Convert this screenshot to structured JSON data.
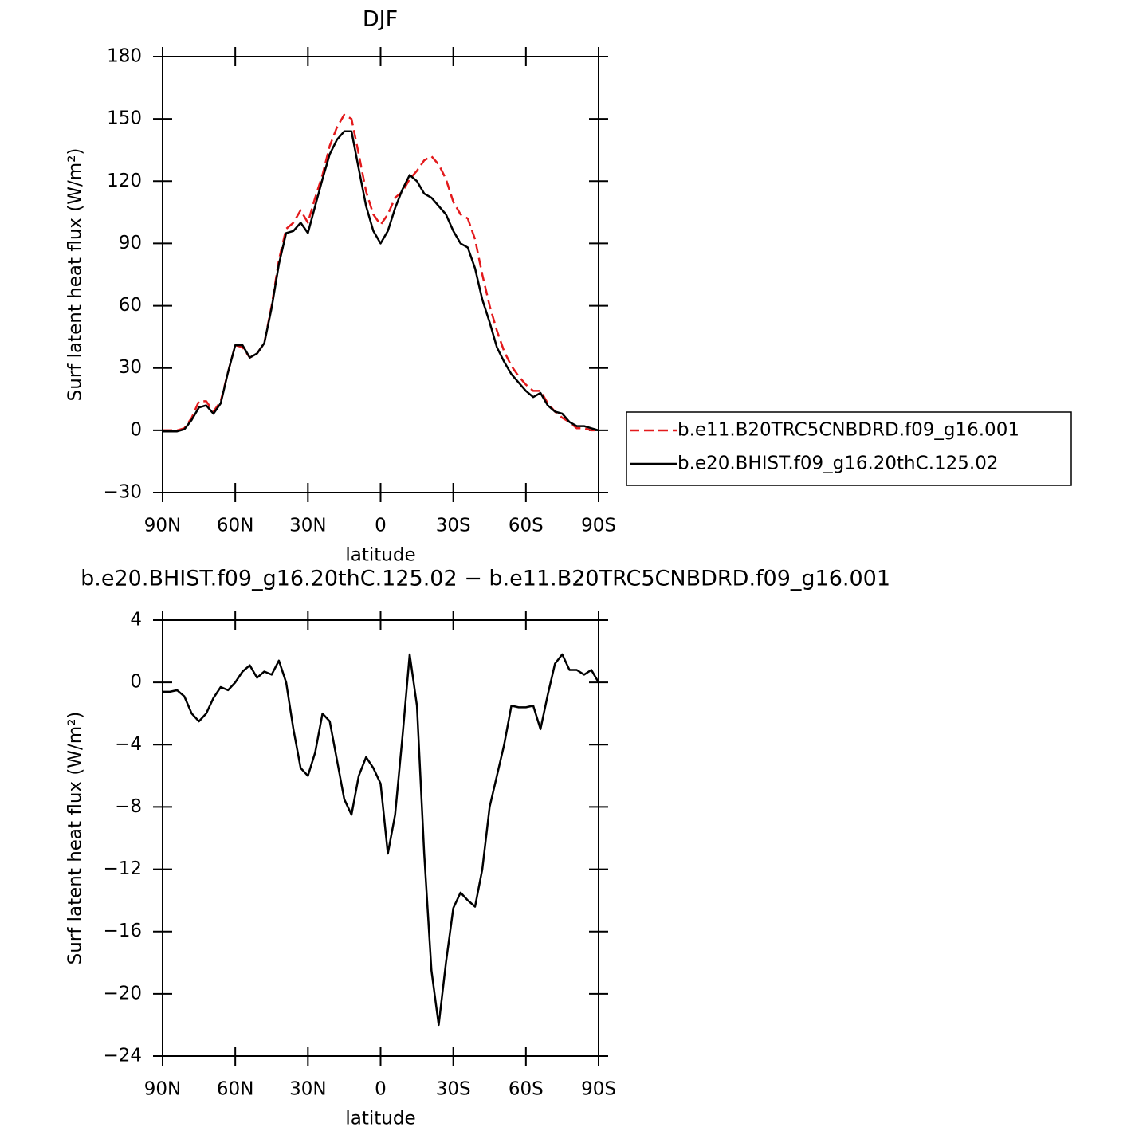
{
  "chart_data": [
    {
      "type": "line",
      "title": "DJF",
      "xlabel": "latitude",
      "ylabel": "Surf latent heat flux (W/m²)",
      "legend": "right",
      "x": [
        90,
        87,
        84,
        81,
        78,
        75,
        72,
        69,
        66,
        63,
        60,
        57,
        54,
        51,
        48,
        45,
        42,
        39,
        36,
        33,
        30,
        27,
        24,
        21,
        18,
        15,
        12,
        9,
        6,
        3,
        0,
        -3,
        -6,
        -9,
        -12,
        -15,
        -18,
        -21,
        -24,
        -27,
        -30,
        -33,
        -36,
        -39,
        -42,
        -45,
        -48,
        -51,
        -54,
        -57,
        -60,
        -63,
        -66,
        -69,
        -72,
        -75,
        -78,
        -81,
        -84,
        -87,
        -90
      ],
      "series": [
        {
          "name": "b.e11.B20TRC5CNBDRD.f09_g16.001",
          "color": "#e31a1c",
          "dash": true,
          "values": [
            0,
            0,
            0,
            1,
            6,
            14,
            14,
            9,
            14,
            28,
            41,
            40,
            35,
            37,
            42,
            60,
            82,
            97,
            100,
            106,
            100,
            112,
            123,
            137,
            146,
            152,
            150,
            133,
            115,
            104,
            99,
            104,
            112,
            115,
            121,
            125,
            130,
            132,
            128,
            121,
            110,
            104,
            102,
            92,
            75,
            60,
            48,
            38,
            31,
            26,
            22,
            19,
            19,
            13,
            9,
            6,
            4,
            1,
            1,
            0,
            0
          ]
        },
        {
          "name": "b.e20.BHIST.f09_g16.20thC.125.02",
          "color": "#000000",
          "dash": false,
          "values": [
            -0.5,
            -0.5,
            -0.5,
            0.5,
            5,
            11,
            12,
            8,
            13,
            28,
            41,
            41,
            35,
            37,
            42,
            59,
            80,
            95,
            96,
            100,
            95,
            108,
            121,
            133,
            140,
            144,
            144,
            126,
            108,
            96,
            90,
            96,
            107,
            116,
            123,
            120,
            114,
            112,
            108,
            104,
            96,
            90,
            88,
            78,
            63,
            52,
            40,
            33,
            27,
            23,
            19,
            16,
            18,
            12,
            9,
            8,
            4,
            2,
            2,
            1,
            0
          ]
        }
      ],
      "xlim": [
        90,
        -90
      ],
      "xticks": [
        {
          "value": 90,
          "label": "90N"
        },
        {
          "value": 60,
          "label": "60N"
        },
        {
          "value": 30,
          "label": "30N"
        },
        0,
        {
          "value": -30,
          "label": "30S"
        },
        {
          "value": -60,
          "label": "60S"
        },
        {
          "value": -90,
          "label": "90S"
        }
      ],
      "ylim": [
        -30,
        180
      ],
      "yticks": [
        {
          "value": -30,
          "label": "−30"
        },
        0,
        30,
        60,
        90,
        120,
        150,
        180
      ]
    },
    {
      "type": "line",
      "title": "b.e20.BHIST.f09_g16.20thC.125.02 − b.e11.B20TRC5CNBDRD.f09_g16.001",
      "xlabel": "latitude",
      "ylabel": "Surf latent heat flux (W/m²)",
      "x": [
        90,
        87,
        84,
        81,
        78,
        75,
        72,
        69,
        66,
        63,
        60,
        57,
        54,
        51,
        48,
        45,
        42,
        39,
        36,
        33,
        30,
        27,
        24,
        21,
        18,
        15,
        12,
        9,
        6,
        3,
        0,
        -3,
        -6,
        -9,
        -12,
        -15,
        -18,
        -21,
        -24,
        -27,
        -30,
        -33,
        -36,
        -39,
        -42,
        -45,
        -48,
        -51,
        -54,
        -57,
        -60,
        -63,
        -66,
        -69,
        -72,
        -75,
        -78,
        -81,
        -84,
        -87,
        -90
      ],
      "series": [
        {
          "color": "#000000",
          "dash": false,
          "values": [
            -0.6,
            -0.6,
            -0.5,
            -0.9,
            -2,
            -2.5,
            -2,
            -1,
            -0.3,
            -0.5,
            0,
            0.7,
            1.1,
            0.3,
            0.7,
            0.5,
            1.4,
            0,
            -3,
            -5.5,
            -6,
            -4.5,
            -2,
            -2.5,
            -5,
            -7.5,
            -8.5,
            -6,
            -4.8,
            -5.5,
            -6.5,
            -11,
            -8.5,
            -3.5,
            1.8,
            -1.5,
            -11,
            -18.5,
            -22,
            -18,
            -14.5,
            -13.5,
            -14,
            -14.4,
            -12,
            -8,
            -6,
            -4,
            -1.5,
            -1.6,
            -1.6,
            -1.5,
            -3,
            -0.8,
            1.2,
            1.8,
            0.8,
            0.8,
            0.5,
            0.8,
            0
          ]
        }
      ],
      "xlim": [
        90,
        -90
      ],
      "xticks": [
        {
          "value": 90,
          "label": "90N"
        },
        {
          "value": 60,
          "label": "60N"
        },
        {
          "value": 30,
          "label": "30N"
        },
        0,
        {
          "value": -30,
          "label": "30S"
        },
        {
          "value": -60,
          "label": "60S"
        },
        {
          "value": -90,
          "label": "90S"
        }
      ],
      "ylim": [
        -24,
        4
      ],
      "yticks": [
        {
          "value": -24,
          "label": "−24"
        },
        {
          "value": -20,
          "label": "−20"
        },
        {
          "value": -16,
          "label": "−16"
        },
        {
          "value": -12,
          "label": "−12"
        },
        {
          "value": -8,
          "label": "−8"
        },
        {
          "value": -4,
          "label": "−4"
        },
        0,
        4
      ]
    }
  ]
}
